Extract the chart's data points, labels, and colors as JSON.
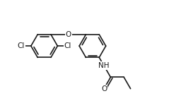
{
  "bg_color": "#ffffff",
  "bond_color": "#1a1a1a",
  "atom_color": "#1a1a1a",
  "line_width": 1.2,
  "font_size": 7.5,
  "fig_width": 2.39,
  "fig_height": 1.53,
  "dpi": 100,
  "r": 0.33,
  "xlim": [
    0.0,
    4.2
  ],
  "ylim": [
    -0.3,
    2.0
  ]
}
